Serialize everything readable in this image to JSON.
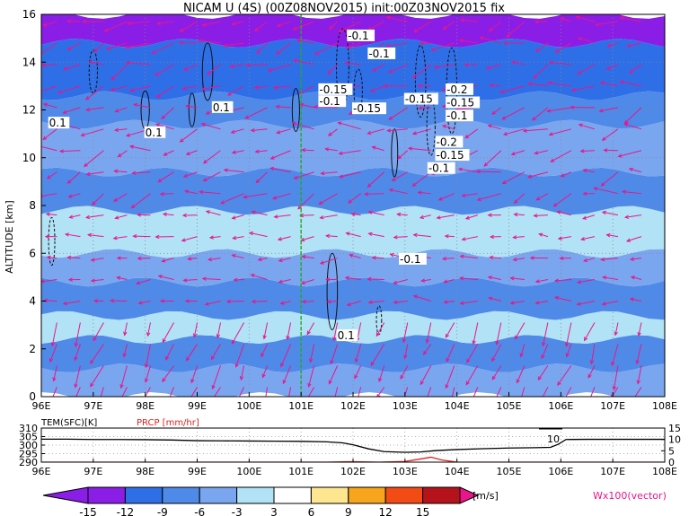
{
  "title": "NICAM U (4S) (00Z08NOV2015) init:00Z03NOV2015 fix",
  "colors": {
    "vector": "#e8168a",
    "guide": "#22aa22",
    "prcp": "#e02020"
  },
  "chart_data": [
    {
      "type": "heatmap",
      "x_ticks": [
        "96E",
        "97E",
        "98E",
        "99E",
        "100E",
        "101E",
        "102E",
        "103E",
        "104E",
        "105E",
        "106E",
        "107E",
        "108E"
      ],
      "xlim": [
        96,
        108
      ],
      "ylabel": "ALTITUDE [km]",
      "ylim": [
        0,
        16
      ],
      "y_ticks": [
        "0",
        "2",
        "4",
        "6",
        "8",
        "10",
        "12",
        "14",
        "16"
      ],
      "guide_x": 101,
      "layers": [
        {
          "z0": 0.0,
          "z1": 1.2,
          "level": -6
        },
        {
          "z0": 1.2,
          "z1": 2.4,
          "level": -9
        },
        {
          "z0": 2.4,
          "z1": 3.4,
          "level": -3
        },
        {
          "z0": 3.4,
          "z1": 4.8,
          "level": -9
        },
        {
          "z0": 4.8,
          "z1": 6.0,
          "level": -6
        },
        {
          "z0": 6.0,
          "z1": 7.8,
          "level": -3
        },
        {
          "z0": 7.8,
          "z1": 9.4,
          "level": -9
        },
        {
          "z0": 9.4,
          "z1": 11.4,
          "level": -6
        },
        {
          "z0": 11.4,
          "z1": 12.6,
          "level": -9
        },
        {
          "z0": 12.6,
          "z1": 14.8,
          "level": -12
        },
        {
          "z0": 14.8,
          "z1": 16.0,
          "level": -15
        }
      ],
      "contour_labels": [
        {
          "x": 101.9,
          "z": 14.95,
          "text": "-0.1"
        },
        {
          "x": 102.3,
          "z": 14.2,
          "text": "-0.1"
        },
        {
          "x": 101.35,
          "z": 12.7,
          "text": "-0.15"
        },
        {
          "x": 101.35,
          "z": 12.2,
          "text": "-0.1"
        },
        {
          "x": 102.0,
          "z": 11.9,
          "text": "-0.15"
        },
        {
          "x": 103.0,
          "z": 12.3,
          "text": "-0.15"
        },
        {
          "x": 103.8,
          "z": 12.7,
          "text": "-0.2"
        },
        {
          "x": 103.8,
          "z": 12.15,
          "text": "-0.15"
        },
        {
          "x": 103.8,
          "z": 11.6,
          "text": "-0.1"
        },
        {
          "x": 103.6,
          "z": 10.5,
          "text": "-0.2"
        },
        {
          "x": 103.6,
          "z": 9.95,
          "text": "-0.15"
        },
        {
          "x": 103.45,
          "z": 9.4,
          "text": "-0.1"
        },
        {
          "x": 102.9,
          "z": 5.6,
          "text": "-0.1"
        },
        {
          "x": 96.15,
          "z": 11.3,
          "text": "0.1"
        },
        {
          "x": 99.3,
          "z": 11.95,
          "text": "0.1"
        },
        {
          "x": 98.0,
          "z": 10.9,
          "text": "0.1"
        },
        {
          "x": 101.7,
          "z": 2.4,
          "text": "0.1"
        }
      ]
    },
    {
      "type": "line",
      "x_ticks": [
        "96E",
        "97E",
        "98E",
        "99E",
        "100E",
        "101E",
        "102E",
        "103E",
        "104E",
        "105E",
        "106E",
        "107E",
        "108E"
      ],
      "left_label": "TEM(SFC)[K]",
      "right_label": "PRCP [mm/hr]",
      "left_ticks": [
        "310",
        "305",
        "300",
        "295",
        "290"
      ],
      "left_ylim": [
        290,
        310
      ],
      "right_ticks": [
        "15",
        "10",
        "5",
        "0"
      ],
      "right_ylim": [
        0,
        15
      ],
      "series": [
        {
          "axis": "left",
          "x": [
            96.0,
            96.5,
            97.0,
            97.5,
            98.0,
            98.5,
            99.0,
            99.5,
            100.0,
            100.5,
            101.0,
            101.5,
            101.8,
            102.0,
            102.3,
            102.6,
            103.0,
            103.3,
            103.6,
            104.0,
            104.5,
            105.0,
            105.5,
            105.8,
            105.95,
            106.1,
            106.5,
            107.0,
            107.5,
            108.0
          ],
          "y": [
            303.5,
            303.5,
            303.3,
            303.3,
            303.2,
            303.0,
            302.6,
            302.5,
            302.4,
            302.3,
            302.2,
            301.9,
            301.3,
            300.2,
            297.8,
            296.2,
            295.8,
            296.0,
            296.8,
            297.4,
            297.9,
            298.3,
            298.5,
            298.7,
            300.5,
            303.3,
            303.4,
            303.4,
            303.4,
            303.4
          ]
        },
        {
          "axis": "right",
          "x": [
            96.0,
            101.5,
            102.0,
            102.5,
            103.0,
            103.3,
            103.5,
            103.7,
            104.0,
            108.0
          ],
          "y": [
            0,
            0,
            0.2,
            0,
            0.3,
            1.4,
            2.2,
            1.0,
            0,
            0
          ]
        }
      ],
      "annotations": [
        "10"
      ]
    }
  ],
  "colorbar": {
    "labels": [
      "-15",
      "-12",
      "-9",
      "-6",
      "-3",
      "3",
      "6",
      "9",
      "12",
      "15"
    ],
    "bins": [
      "#8a1ee6",
      "#2e6fe8",
      "#4f8ae8",
      "#7aa6ef",
      "#b1e2f5",
      "#ffffff",
      "#fde68f",
      "#f6a51c",
      "#f24b16",
      "#b5121b"
    ],
    "unit": "[m/s]"
  },
  "vector_key": "Wx100(vector)"
}
